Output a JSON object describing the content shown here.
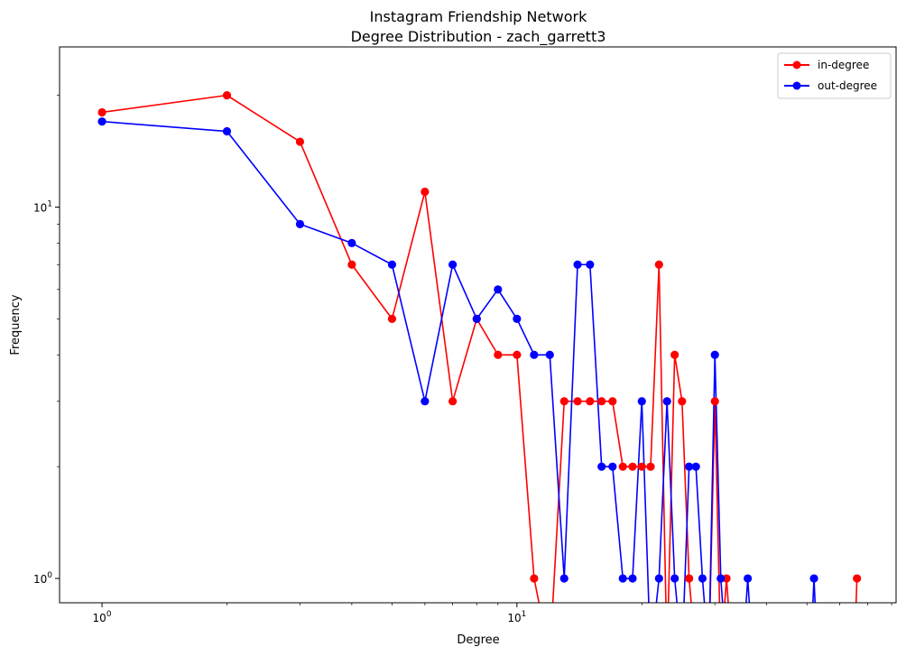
{
  "chart_data": {
    "type": "line",
    "title": "Instagram Friendship Network",
    "subtitle": "Degree Distribution - zach_garrett3",
    "xlabel": "Degree",
    "ylabel": "Frequency",
    "xscale": "log",
    "yscale": "log",
    "xlim": [
      0.79,
      82
    ],
    "ylim": [
      0.86,
      27
    ],
    "x_ticks": [
      {
        "base": "10",
        "exp": "0",
        "value": 1
      },
      {
        "base": "10",
        "exp": "1",
        "value": 10
      }
    ],
    "y_ticks": [
      {
        "base": "10",
        "exp": "0",
        "value": 1
      },
      {
        "base": "10",
        "exp": "1",
        "value": 10
      }
    ],
    "grid": false,
    "legend_position": "top-right",
    "series": [
      {
        "name": "in-degree",
        "color": "#ff0000",
        "x": [
          0,
          1,
          2,
          3,
          4,
          5,
          6,
          7,
          8,
          9,
          10,
          11,
          12,
          13,
          14,
          15,
          16,
          17,
          18,
          19,
          20,
          21,
          22,
          23,
          24,
          25,
          26,
          27,
          28,
          29,
          30,
          31,
          32,
          33,
          34,
          35,
          36,
          37,
          38,
          39,
          40,
          41,
          42,
          43,
          44,
          45,
          46,
          47,
          48,
          49,
          50,
          51,
          52,
          53,
          54,
          55,
          56,
          57,
          58,
          59,
          60,
          61,
          62,
          63,
          64,
          65,
          66
        ],
        "y": [
          18,
          18,
          20,
          15,
          7,
          5,
          11,
          3,
          5,
          4,
          4,
          1,
          0,
          3,
          3,
          3,
          3,
          3,
          2,
          2,
          2,
          2,
          7,
          0,
          4,
          3,
          1,
          0,
          0,
          0,
          3,
          0,
          1,
          0,
          0,
          0,
          0,
          0,
          0,
          0,
          0,
          0,
          0,
          0,
          0,
          0,
          0,
          0,
          0,
          0,
          0,
          0,
          0,
          0,
          0,
          0,
          0,
          0,
          0,
          0,
          0,
          0,
          0,
          0,
          0,
          0,
          1
        ]
      },
      {
        "name": "out-degree",
        "color": "#0000ff",
        "x": [
          0,
          1,
          2,
          3,
          4,
          5,
          6,
          7,
          8,
          9,
          10,
          11,
          12,
          13,
          14,
          15,
          16,
          17,
          18,
          19,
          20,
          21,
          22,
          23,
          24,
          25,
          26,
          27,
          28,
          29,
          30,
          31,
          32,
          33,
          34,
          35,
          36,
          37,
          38,
          39,
          40,
          41,
          42,
          43,
          44,
          45,
          46,
          47,
          48,
          49,
          50,
          51,
          52,
          53,
          54,
          55,
          56,
          57,
          58,
          59,
          60,
          61,
          62,
          63,
          64,
          65,
          66
        ],
        "y": [
          17,
          17,
          16,
          9,
          8,
          7,
          3,
          7,
          5,
          6,
          5,
          4,
          4,
          1,
          7,
          7,
          2,
          2,
          1,
          1,
          3,
          0,
          1,
          3,
          1,
          0,
          2,
          2,
          1,
          0,
          4,
          1,
          0,
          0,
          0,
          0,
          1,
          0,
          0,
          0,
          0,
          0,
          0,
          0,
          0,
          0,
          0,
          0,
          0,
          0,
          0,
          0,
          1,
          0,
          0,
          0,
          0,
          0,
          0,
          0,
          0,
          0,
          0,
          0,
          0,
          0,
          0
        ]
      }
    ]
  }
}
